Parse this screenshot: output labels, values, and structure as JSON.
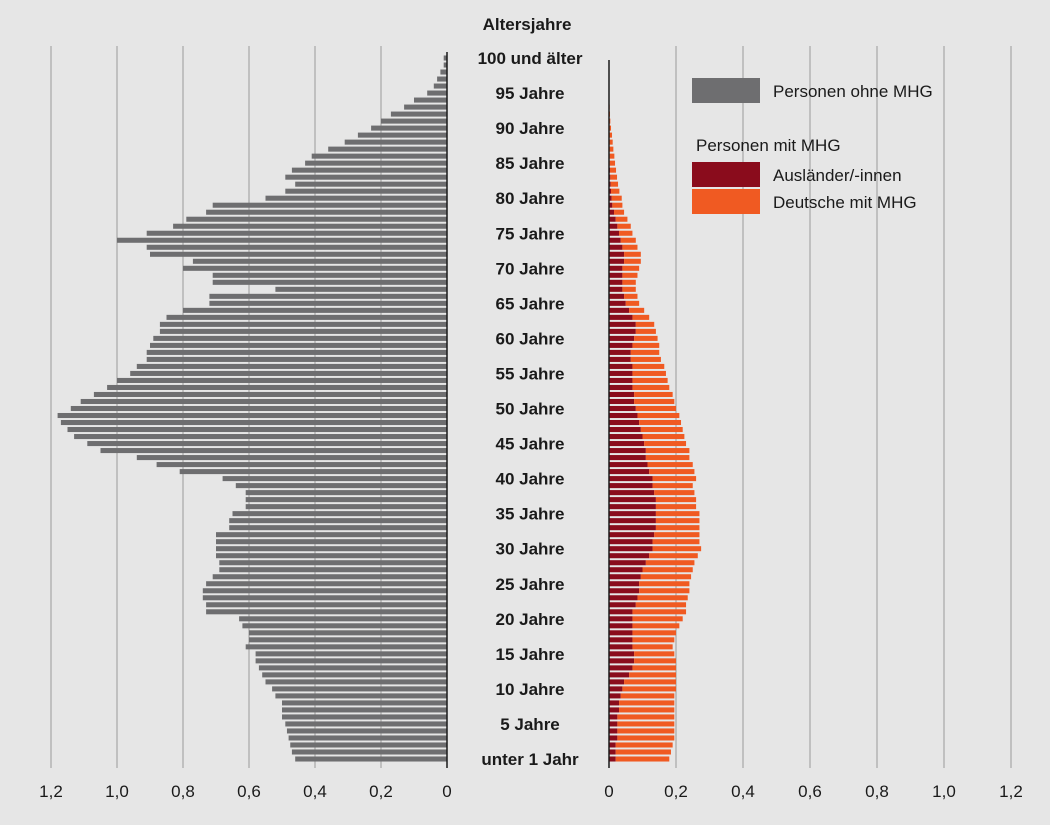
{
  "chart_data": {
    "type": "bar",
    "orientation": "horizontal",
    "layout": "population-pyramid",
    "y_title": "Altersjahre",
    "age_labels": [
      {
        "age": 100,
        "label": "100 und älter"
      },
      {
        "age": 95,
        "label": "95 Jahre"
      },
      {
        "age": 90,
        "label": "90 Jahre"
      },
      {
        "age": 85,
        "label": "85 Jahre"
      },
      {
        "age": 80,
        "label": "80 Jahre"
      },
      {
        "age": 75,
        "label": "75 Jahre"
      },
      {
        "age": 70,
        "label": "70 Jahre"
      },
      {
        "age": 65,
        "label": "65 Jahre"
      },
      {
        "age": 60,
        "label": "60 Jahre"
      },
      {
        "age": 55,
        "label": "55 Jahre"
      },
      {
        "age": 50,
        "label": "50 Jahre"
      },
      {
        "age": 45,
        "label": "45 Jahre"
      },
      {
        "age": 40,
        "label": "40 Jahre"
      },
      {
        "age": 35,
        "label": "35 Jahre"
      },
      {
        "age": 30,
        "label": "30 Jahre"
      },
      {
        "age": 25,
        "label": "25 Jahre"
      },
      {
        "age": 20,
        "label": "20 Jahre"
      },
      {
        "age": 15,
        "label": "15 Jahre"
      },
      {
        "age": 10,
        "label": "10 Jahre"
      },
      {
        "age": 5,
        "label": "5 Jahre"
      },
      {
        "age": 0,
        "label": "unter 1 Jahr"
      }
    ],
    "left_panel": {
      "xlim": [
        0,
        1.2
      ],
      "ticks": [
        {
          "v": 1.2,
          "label": "1,2"
        },
        {
          "v": 1.0,
          "label": "1,0"
        },
        {
          "v": 0.8,
          "label": "0,8"
        },
        {
          "v": 0.6,
          "label": "0,6"
        },
        {
          "v": 0.4,
          "label": "0,4"
        },
        {
          "v": 0.2,
          "label": "0,2"
        },
        {
          "v": 0,
          "label": "0"
        }
      ]
    },
    "right_panel": {
      "xlim": [
        0,
        1.2
      ],
      "ticks": [
        {
          "v": 0,
          "label": "0"
        },
        {
          "v": 0.2,
          "label": "0,2"
        },
        {
          "v": 0.4,
          "label": "0,4"
        },
        {
          "v": 0.6,
          "label": "0,6"
        },
        {
          "v": 0.8,
          "label": "0,8"
        },
        {
          "v": 1.0,
          "label": "1,0"
        },
        {
          "v": 1.2,
          "label": "1,2"
        }
      ]
    },
    "ages": [
      0,
      1,
      2,
      3,
      4,
      5,
      6,
      7,
      8,
      9,
      10,
      11,
      12,
      13,
      14,
      15,
      16,
      17,
      18,
      19,
      20,
      21,
      22,
      23,
      24,
      25,
      26,
      27,
      28,
      29,
      30,
      31,
      32,
      33,
      34,
      35,
      36,
      37,
      38,
      39,
      40,
      41,
      42,
      43,
      44,
      45,
      46,
      47,
      48,
      49,
      50,
      51,
      52,
      53,
      54,
      55,
      56,
      57,
      58,
      59,
      60,
      61,
      62,
      63,
      64,
      65,
      66,
      67,
      68,
      69,
      70,
      71,
      72,
      73,
      74,
      75,
      76,
      77,
      78,
      79,
      80,
      81,
      82,
      83,
      84,
      85,
      86,
      87,
      88,
      89,
      90,
      91,
      92,
      93,
      94,
      95,
      96,
      97,
      98,
      99,
      100
    ],
    "series": [
      {
        "name": "Personen ohne MHG",
        "color": "#6e6e70",
        "values": [
          0.46,
          0.47,
          0.475,
          0.48,
          0.485,
          0.49,
          0.5,
          0.5,
          0.5,
          0.52,
          0.53,
          0.55,
          0.56,
          0.57,
          0.58,
          0.58,
          0.61,
          0.6,
          0.6,
          0.62,
          0.63,
          0.73,
          0.73,
          0.74,
          0.74,
          0.73,
          0.71,
          0.69,
          0.69,
          0.7,
          0.7,
          0.7,
          0.7,
          0.66,
          0.66,
          0.65,
          0.61,
          0.61,
          0.61,
          0.64,
          0.68,
          0.81,
          0.88,
          0.94,
          1.05,
          1.09,
          1.13,
          1.15,
          1.17,
          1.18,
          1.14,
          1.11,
          1.07,
          1.03,
          1.0,
          0.96,
          0.94,
          0.91,
          0.91,
          0.9,
          0.89,
          0.87,
          0.87,
          0.85,
          0.8,
          0.72,
          0.72,
          0.52,
          0.71,
          0.71,
          0.8,
          0.77,
          0.9,
          0.91,
          1.0,
          0.91,
          0.83,
          0.79,
          0.73,
          0.71,
          0.55,
          0.49,
          0.46,
          0.49,
          0.47,
          0.43,
          0.41,
          0.36,
          0.31,
          0.27,
          0.23,
          0.2,
          0.17,
          0.13,
          0.1,
          0.06,
          0.04,
          0.03,
          0.02,
          0.01,
          0.01
        ]
      },
      {
        "name": "Ausländer/-innen",
        "color": "#8a0c1c",
        "values": [
          0.02,
          0.02,
          0.02,
          0.025,
          0.025,
          0.025,
          0.025,
          0.03,
          0.03,
          0.035,
          0.04,
          0.045,
          0.06,
          0.07,
          0.075,
          0.075,
          0.07,
          0.07,
          0.07,
          0.07,
          0.07,
          0.07,
          0.08,
          0.085,
          0.09,
          0.09,
          0.095,
          0.1,
          0.11,
          0.12,
          0.13,
          0.13,
          0.135,
          0.14,
          0.14,
          0.14,
          0.14,
          0.14,
          0.135,
          0.13,
          0.13,
          0.12,
          0.115,
          0.11,
          0.11,
          0.105,
          0.1,
          0.095,
          0.09,
          0.085,
          0.08,
          0.075,
          0.075,
          0.07,
          0.07,
          0.07,
          0.07,
          0.065,
          0.065,
          0.07,
          0.075,
          0.08,
          0.08,
          0.07,
          0.06,
          0.05,
          0.045,
          0.04,
          0.04,
          0.04,
          0.04,
          0.045,
          0.045,
          0.04,
          0.035,
          0.03,
          0.025,
          0.02,
          0.015,
          0.01,
          0.008,
          0.006,
          0.005,
          0.004,
          0.003,
          0.002,
          0.002,
          0.001,
          0.001,
          0.001,
          0,
          0,
          0,
          0,
          0,
          0,
          0,
          0,
          0,
          0,
          0
        ]
      },
      {
        "name": "Deutsche mit MHG",
        "color": "#f05a22",
        "values": [
          0.16,
          0.165,
          0.17,
          0.17,
          0.17,
          0.17,
          0.17,
          0.165,
          0.165,
          0.16,
          0.16,
          0.155,
          0.14,
          0.13,
          0.125,
          0.12,
          0.12,
          0.125,
          0.13,
          0.14,
          0.15,
          0.16,
          0.15,
          0.15,
          0.15,
          0.15,
          0.15,
          0.15,
          0.145,
          0.145,
          0.145,
          0.14,
          0.135,
          0.13,
          0.13,
          0.13,
          0.12,
          0.12,
          0.12,
          0.12,
          0.13,
          0.135,
          0.135,
          0.13,
          0.13,
          0.125,
          0.125,
          0.125,
          0.125,
          0.125,
          0.12,
          0.12,
          0.115,
          0.11,
          0.105,
          0.1,
          0.095,
          0.09,
          0.085,
          0.08,
          0.07,
          0.06,
          0.055,
          0.05,
          0.045,
          0.04,
          0.04,
          0.04,
          0.04,
          0.045,
          0.05,
          0.05,
          0.05,
          0.045,
          0.045,
          0.04,
          0.04,
          0.035,
          0.03,
          0.03,
          0.03,
          0.025,
          0.022,
          0.02,
          0.018,
          0.016,
          0.014,
          0.012,
          0.01,
          0.008,
          0.006,
          0.004,
          0.003,
          0.002,
          0.001,
          0,
          0,
          0,
          0,
          0,
          0
        ]
      }
    ],
    "legend": {
      "placement": "top-right",
      "items": [
        {
          "label": "Personen ohne MHG",
          "color": "#6e6e70"
        },
        {
          "heading": "Personen mit MHG"
        },
        {
          "label": "Ausländer/-innen",
          "color": "#8a0c1c"
        },
        {
          "label": "Deutsche mit MHG",
          "color": "#f05a22"
        }
      ]
    },
    "grid": true,
    "background": "#e6e6e6",
    "gridline_color": "#9a9a9a"
  }
}
